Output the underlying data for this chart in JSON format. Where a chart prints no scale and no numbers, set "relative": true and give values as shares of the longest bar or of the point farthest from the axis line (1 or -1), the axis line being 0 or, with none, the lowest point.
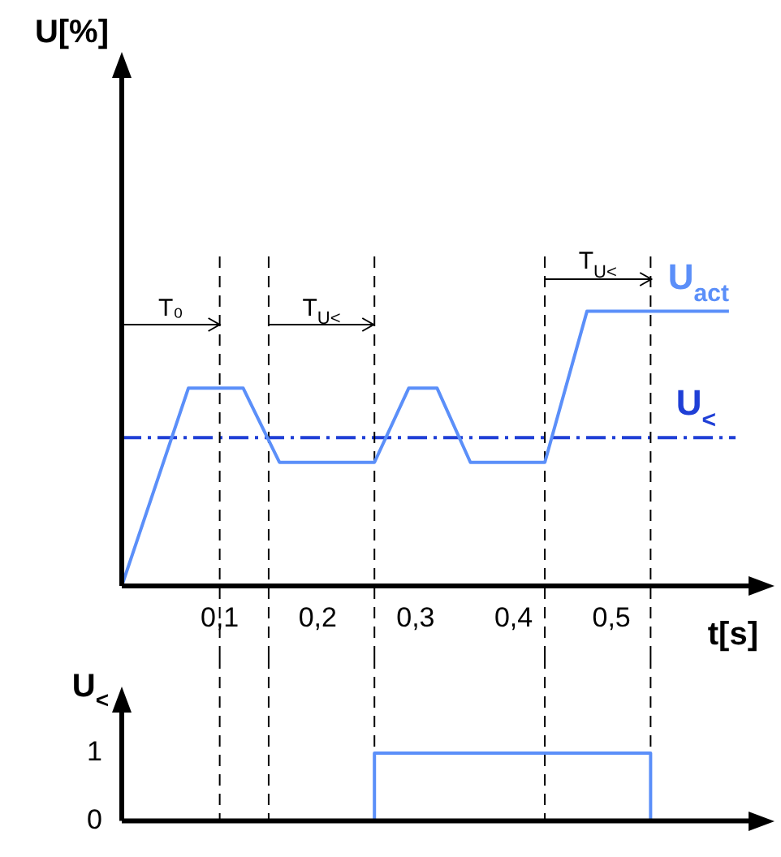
{
  "chart_data": [
    {
      "type": "line",
      "relative": true,
      "xlabel": "t[s]",
      "ylabel": "U[%]",
      "xlim": [
        0,
        0.64
      ],
      "xticks": [
        {
          "value": 0.1,
          "label": "0,1"
        },
        {
          "value": 0.2,
          "label": "0,2"
        },
        {
          "value": 0.3,
          "label": "0,3"
        },
        {
          "value": 0.4,
          "label": "0,4"
        },
        {
          "value": 0.5,
          "label": "0,5"
        }
      ],
      "series": [
        {
          "name": "U$_{act}$",
          "color": "#5b8ff9",
          "x": [
            0,
            0.068,
            0.124,
            0.161,
            0.258,
            0.293,
            0.322,
            0.356,
            0.432,
            0.475,
            0.62
          ],
          "values": [
            0,
            0.72,
            0.72,
            0.45,
            0.45,
            0.72,
            0.72,
            0.45,
            0.45,
            1,
            1
          ]
        }
      ],
      "ref_lines": [
        {
          "axis": "y",
          "value": 0.54,
          "label": "U$_{<}$",
          "color": "#1f3fd6",
          "line_style": "dashdot"
        },
        {
          "axis": "x",
          "value": 0.1,
          "color": "#000000",
          "line_style": "dashed"
        },
        {
          "axis": "x",
          "value": 0.15,
          "color": "#000000",
          "line_style": "dashed"
        },
        {
          "axis": "x",
          "value": 0.258,
          "color": "#000000",
          "line_style": "dashed"
        },
        {
          "axis": "x",
          "value": 0.432,
          "color": "#000000",
          "line_style": "dashed"
        },
        {
          "axis": "x",
          "value": 0.54,
          "color": "#000000",
          "line_style": "dashed"
        }
      ],
      "annotations": [
        "T₀",
        "T$_{U<}$",
        "T$_{U<}$"
      ],
      "grid": false,
      "legend": false,
      "marker": "none",
      "line_style": "solid"
    },
    {
      "type": "step",
      "ylabel": "U$_{<}$",
      "xlim": [
        0,
        0.64
      ],
      "ylim": [
        0,
        1.6
      ],
      "yticks": [
        0,
        1
      ],
      "tick_labels": "y",
      "series": [
        {
          "color": "#5b8ff9",
          "x": [
            0,
            0.258,
            0.54,
            0.62
          ],
          "values": [
            0,
            1,
            0,
            0
          ]
        }
      ],
      "ref_lines": [
        {
          "axis": "x",
          "value": 0.1,
          "color": "#000000",
          "line_style": "dashed"
        },
        {
          "axis": "x",
          "value": 0.15,
          "color": "#000000",
          "line_style": "dashed"
        },
        {
          "axis": "x",
          "value": 0.258,
          "color": "#000000",
          "line_style": "dashed"
        },
        {
          "axis": "x",
          "value": 0.432,
          "color": "#000000",
          "line_style": "dashed"
        },
        {
          "axis": "x",
          "value": 0.54,
          "color": "#000000",
          "line_style": "dashed"
        }
      ],
      "grid": false,
      "legend": false,
      "marker": "none"
    }
  ]
}
